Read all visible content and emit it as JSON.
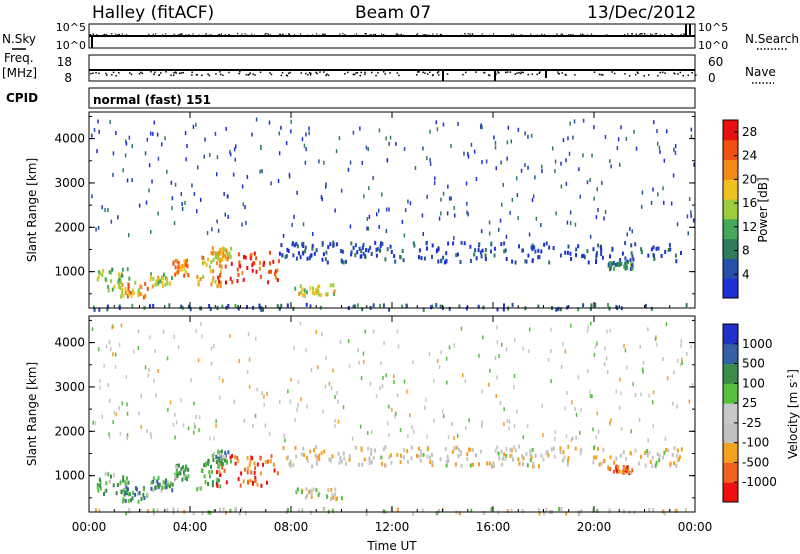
{
  "header": {
    "title": "Halley (fitACF)",
    "beam": "Beam 07",
    "date": "13/Dec/2012"
  },
  "top_panels": {
    "nsky_label": "N.Sky",
    "nsearch_label": "N.Search",
    "nsky_ticks": [
      "10^5",
      "10^0"
    ],
    "nsearch_ticks": [
      "10^5",
      "10^0"
    ],
    "freq_label": "Freq.",
    "freq_unit": "[MHz]",
    "freq_ticks": [
      "18",
      "8"
    ],
    "nave_label": "Nave",
    "nave_ticks": [
      "60",
      "0"
    ],
    "cpid_label": "CPID",
    "cpid_text": "normal (fast) 151"
  },
  "colors": {
    "power": [
      "#1f2fd6",
      "#2850a8",
      "#2e7d5a",
      "#45a85a",
      "#9ccc3a",
      "#f0c020",
      "#f28a1a",
      "#f05010",
      "#e81010"
    ],
    "velocity": [
      "#ee1010",
      "#f06020",
      "#f4a020",
      "#c0c0c0",
      "#c8c8c8",
      "#55c040",
      "#3a8c4a",
      "#3560a8",
      "#2030c8"
    ]
  },
  "chart_data": [
    {
      "type": "heatmap",
      "name": "power",
      "xlabel": "",
      "ylabel": "Slant Range [km]",
      "x_ticks": [
        "00:00",
        "04:00",
        "08:00",
        "12:00",
        "16:00",
        "20:00",
        "00:00"
      ],
      "x_range_hours": [
        0,
        24
      ],
      "ylim": [
        180,
        4600
      ],
      "y_ticks": [
        1000,
        2000,
        3000,
        4000
      ],
      "colorbar_label": "Power [dB]",
      "colorbar_ticks": [
        4,
        8,
        12,
        16,
        20,
        24,
        28
      ],
      "colorbar_range": [
        0,
        30
      ],
      "features": [
        {
          "t0": 0.3,
          "t1": 1.6,
          "r0": 600,
          "r1": 1100,
          "level": 0.45
        },
        {
          "t0": 1.2,
          "t1": 2.3,
          "r0": 450,
          "r1": 800,
          "level": 0.7
        },
        {
          "t0": 2.4,
          "t1": 3.3,
          "r0": 700,
          "r1": 1000,
          "level": 0.5
        },
        {
          "t0": 3.3,
          "t1": 3.9,
          "r0": 950,
          "r1": 1300,
          "level": 0.75
        },
        {
          "t0": 4.2,
          "t1": 5.2,
          "r0": 700,
          "r1": 1400,
          "level": 0.65
        },
        {
          "t0": 5.0,
          "t1": 7.5,
          "r0": 800,
          "r1": 1500,
          "level": 0.85
        },
        {
          "t0": 4.8,
          "t1": 5.6,
          "r0": 1300,
          "r1": 1600,
          "level": 0.6
        },
        {
          "t0": 8.0,
          "t1": 10.0,
          "r0": 500,
          "r1": 750,
          "level": 0.55
        },
        {
          "t0": 7.5,
          "t1": 23.5,
          "r0": 1250,
          "r1": 1700,
          "level": 0.12
        },
        {
          "t0": 0.0,
          "t1": 24.0,
          "r0": 180,
          "r1": 300,
          "level": 0.2
        },
        {
          "t0": 20.5,
          "t1": 21.5,
          "r0": 1100,
          "r1": 1250,
          "level": 0.3
        }
      ]
    },
    {
      "type": "heatmap",
      "name": "velocity",
      "xlabel": "Time UT",
      "ylabel": "Slant Range [km]",
      "x_ticks": [
        "00:00",
        "04:00",
        "08:00",
        "12:00",
        "16:00",
        "20:00",
        "00:00"
      ],
      "x_range_hours": [
        0,
        24
      ],
      "ylim": [
        180,
        4600
      ],
      "y_ticks": [
        1000,
        2000,
        3000,
        4000
      ],
      "colorbar_label": "Velocity [m s^-1]",
      "colorbar_ticks": [
        "1000",
        "500",
        "100",
        "25",
        "-25",
        "-100",
        "-500",
        "-1000"
      ],
      "features": [
        {
          "t0": 0.3,
          "t1": 1.6,
          "r0": 600,
          "r1": 1100,
          "level": 0.6
        },
        {
          "t0": 1.2,
          "t1": 2.3,
          "r0": 450,
          "r1": 800,
          "level": 0.7
        },
        {
          "t0": 2.4,
          "t1": 3.3,
          "r0": 700,
          "r1": 1000,
          "level": 0.65
        },
        {
          "t0": 3.3,
          "t1": 3.9,
          "r0": 950,
          "r1": 1300,
          "level": 0.6
        },
        {
          "t0": 4.2,
          "t1": 5.2,
          "r0": 700,
          "r1": 1400,
          "level": 0.7
        },
        {
          "t0": 5.0,
          "t1": 7.5,
          "r0": 800,
          "r1": 1500,
          "level": 0.15
        },
        {
          "t0": 4.8,
          "t1": 5.6,
          "r0": 1300,
          "r1": 1600,
          "level": 0.65
        },
        {
          "t0": 8.0,
          "t1": 10.0,
          "r0": 500,
          "r1": 750,
          "level": 0.45
        },
        {
          "t0": 7.5,
          "t1": 23.5,
          "r0": 1250,
          "r1": 1700,
          "level": 0.4
        },
        {
          "t0": 0.0,
          "t1": 24.0,
          "r0": 180,
          "r1": 300,
          "level": 0.45
        },
        {
          "t0": 20.5,
          "t1": 21.5,
          "r0": 1100,
          "r1": 1250,
          "level": 0.2
        }
      ]
    }
  ]
}
